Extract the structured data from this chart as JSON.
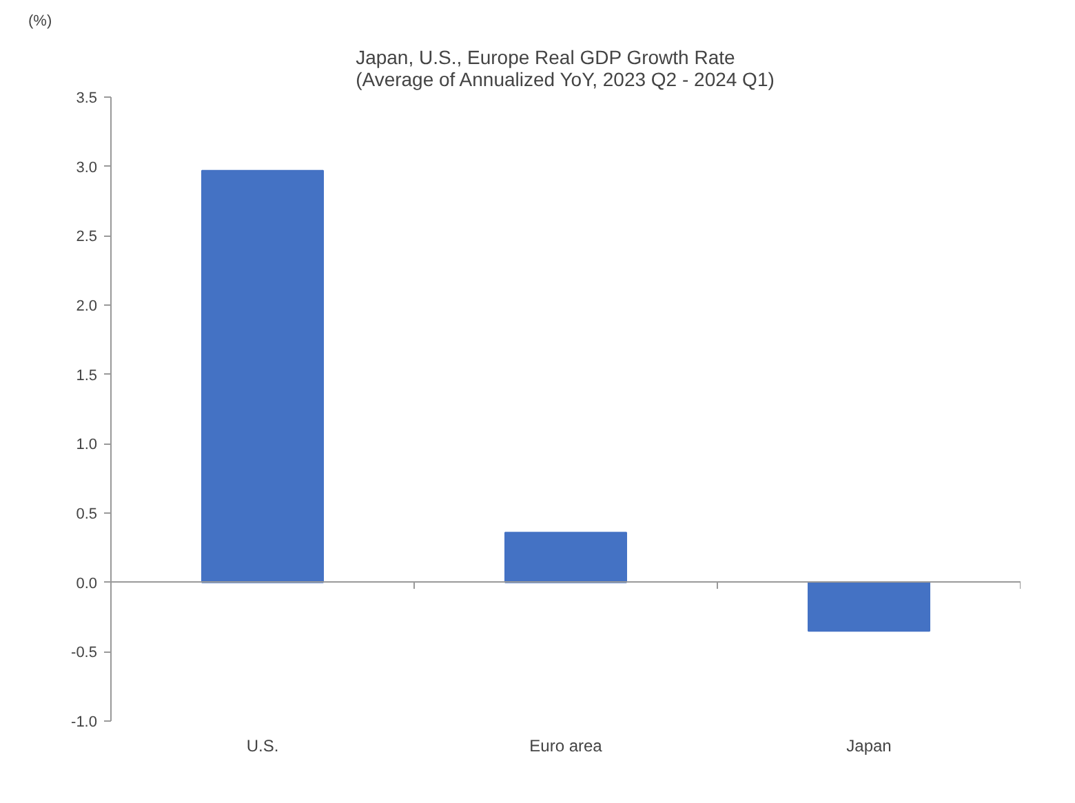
{
  "chart_data": {
    "type": "bar",
    "title": "Japan, U.S., Europe Real GDP Growth Rate\n(Average of Annualized YoY, 2023 Q2 - 2024 Q1)",
    "ylabel": "(%)",
    "categories": [
      "U.S.",
      "Euro area",
      "Japan"
    ],
    "series": [
      {
        "color": "#4472c4",
        "values": [
          2.97,
          0.36,
          -0.35
        ]
      }
    ],
    "ylim": [
      -1.0,
      3.5
    ],
    "yticks": [
      {
        "value": -1.0,
        "label": "-1.0"
      },
      {
        "value": -0.5,
        "label": "-0.5"
      },
      {
        "value": 0,
        "label": "0.0"
      },
      {
        "value": 0.5,
        "label": "0.5"
      },
      {
        "value": 1.0,
        "label": "1.0"
      },
      {
        "value": 1.5,
        "label": "1.5"
      },
      {
        "value": 2.0,
        "label": "2.0"
      },
      {
        "value": 2.5,
        "label": "2.5"
      },
      {
        "value": 3.0,
        "label": "3.0"
      },
      {
        "value": 3.5,
        "label": "3.5"
      }
    ],
    "tick_labels": true
  }
}
